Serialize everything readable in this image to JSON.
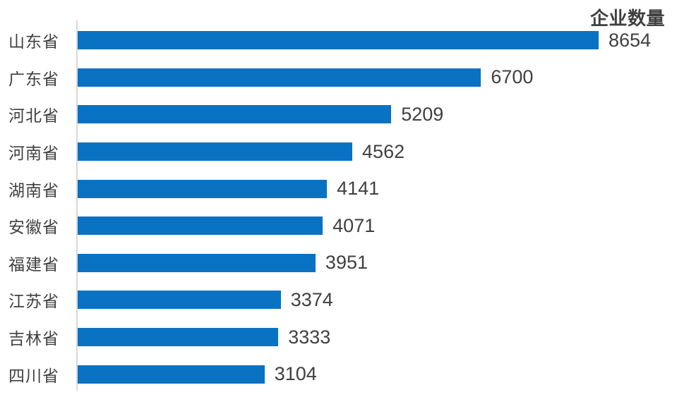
{
  "chart_data": {
    "type": "bar",
    "orientation": "horizontal",
    "title": "企业数量",
    "categories": [
      "山东省",
      "广东省",
      "河北省",
      "河南省",
      "湖南省",
      "安徽省",
      "福建省",
      "江苏省",
      "吉林省",
      "四川省"
    ],
    "values": [
      8654,
      6700,
      5209,
      4562,
      4141,
      4071,
      3951,
      3374,
      3333,
      3104
    ],
    "xlabel": "",
    "ylabel": "",
    "xlim": [
      0,
      8654
    ],
    "grid": false,
    "legend": "none",
    "value_labels_shown": true,
    "colors": {
      "bar": "#0a72c2",
      "value_text": "#404040",
      "category_text": "#3f3f3f",
      "title_text": "#404040",
      "axis_line": "#d9d9d9",
      "background": "#ffffff"
    }
  }
}
